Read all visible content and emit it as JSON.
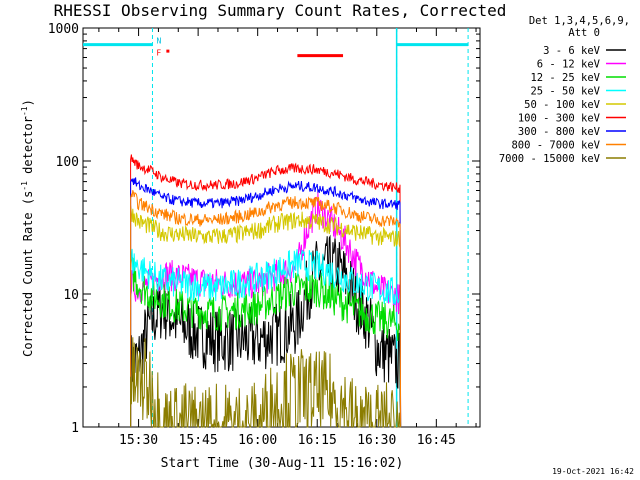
{
  "chart_data": {
    "type": "line",
    "title": "RHESSI Observing Summary Count Rates, Corrected",
    "xlabel": "Start Time (30-Aug-11 15:16:02)",
    "ylabel": "Corrected Count Rate (s",
    "ylabel_sup1": "-1",
    "ylabel_mid": " detector",
    "ylabel_sup2": "-1",
    "ylabel_end": ")",
    "x_tick_labels": [
      "15:30",
      "15:45",
      "16:00",
      "16:15",
      "16:30",
      "16:45"
    ],
    "x_ticks_minutes": [
      30,
      45,
      60,
      75,
      90,
      105
    ],
    "xlim_minutes_after_15h": [
      16.0,
      116.0
    ],
    "y_scale": "log",
    "ylim": [
      1,
      1000
    ],
    "y_tick_labels": [
      "1",
      "10",
      "100",
      "1000"
    ],
    "y_ticks": [
      1,
      10,
      100,
      1000
    ],
    "legend_header": [
      "Det 1,3,4,5,6,9,",
      "Att 0"
    ],
    "footer_date": "19-Oct-2021 16:42",
    "flags": {
      "night_bars_minutes": [
        [
          16.0,
          33.5
        ],
        [
          95.0,
          113.0
        ]
      ],
      "night_level": 750,
      "dashed_lines_minutes": [
        33.5,
        95.0,
        113.0
      ],
      "n_label": "N",
      "f_label": "F",
      "f_marker_minute": 37.0,
      "flare_bar_minutes": [
        70.0,
        81.5
      ],
      "flare_level": 620
    },
    "series": [
      {
        "name": "3 - 6 keV",
        "color": "#000000"
      },
      {
        "name": "6 - 12 keV",
        "color": "#ff00ff"
      },
      {
        "name": "12 - 25 keV",
        "color": "#00dd00"
      },
      {
        "name": "25 - 50 keV",
        "color": "#00ffff"
      },
      {
        "name": "50 - 100 keV",
        "color": "#d4c800"
      },
      {
        "name": "100 - 300 keV",
        "color": "#ff0000"
      },
      {
        "name": "300 - 800 keV",
        "color": "#0000ff"
      },
      {
        "name": "800 - 7000 keV",
        "color": "#ff8000"
      },
      {
        "name": "7000 - 15000 keV",
        "color": "#8b7d00"
      }
    ],
    "curves": {
      "minutes": [
        28,
        30,
        33,
        36,
        40,
        45,
        50,
        55,
        60,
        65,
        70,
        75,
        80,
        85,
        90,
        95,
        96
      ],
      "100 - 300 keV": [
        105,
        92,
        85,
        75,
        68,
        66,
        66,
        68,
        75,
        85,
        88,
        86,
        80,
        72,
        67,
        63,
        63
      ],
      "300 - 800 keV": [
        75,
        65,
        60,
        53,
        50,
        48,
        48,
        50,
        55,
        62,
        65,
        63,
        58,
        52,
        48,
        47,
        47
      ],
      "800 - 7000 keV": [
        57,
        48,
        44,
        40,
        37,
        36,
        36,
        38,
        41,
        47,
        49,
        48,
        44,
        39,
        36,
        35,
        35
      ],
      "50 - 100 keV": [
        42,
        35,
        32,
        29,
        28,
        27,
        27,
        28,
        30,
        34,
        36,
        35,
        32,
        29,
        27,
        26,
        26
      ],
      "25 - 50 keV": [
        18,
        16,
        14,
        12.5,
        12,
        11.5,
        11,
        12,
        13,
        15,
        17,
        16,
        14,
        12,
        11,
        10,
        10
      ],
      "12 - 25 keV": [
        15,
        12,
        10,
        9,
        8,
        7.5,
        7.2,
        7.5,
        8,
        9.5,
        11,
        11,
        9,
        7.5,
        6.5,
        6,
        6
      ],
      "6 - 12 keV": [
        12,
        11,
        12,
        14,
        13.5,
        12.5,
        12,
        12,
        12,
        14,
        16,
        45,
        30,
        17,
        11,
        9.5,
        9
      ],
      "3 - 6 keV": [
        3,
        3.2,
        6,
        8,
        6,
        5,
        4.5,
        4.5,
        4.5,
        5,
        6,
        15,
        16,
        9,
        4,
        3,
        3
      ],
      "7000 - 15000 keV": [
        2.2,
        2.2,
        2,
        1,
        1,
        1,
        1,
        1,
        1,
        1.6,
        1.8,
        1.7,
        1.6,
        1,
        1,
        1,
        1
      ]
    }
  }
}
